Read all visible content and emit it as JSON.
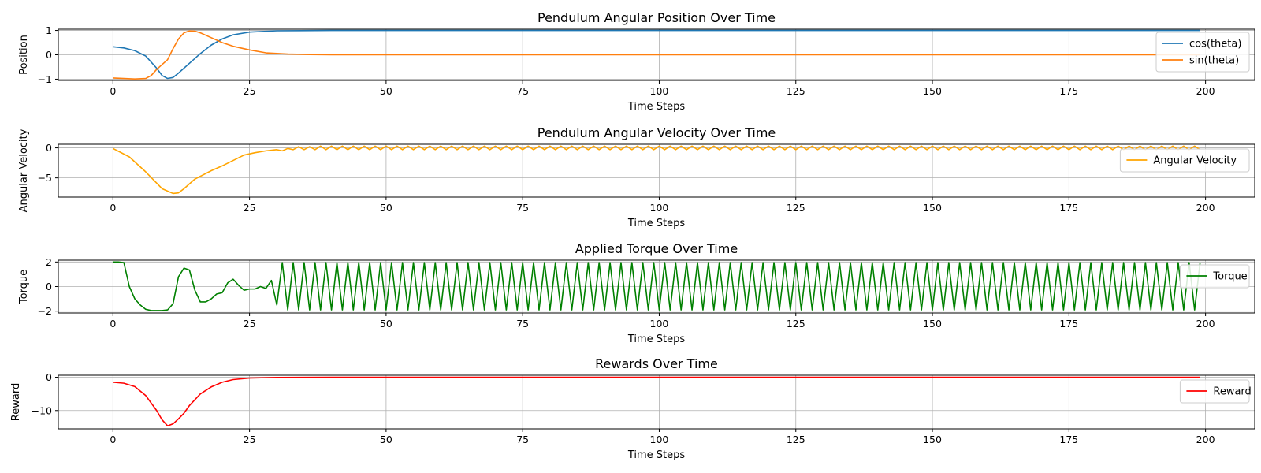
{
  "chart_data": [
    {
      "type": "line",
      "title": "Pendulum Angular Position Over Time",
      "xlabel": "Time Steps",
      "ylabel": "Position",
      "xlim": [
        -10,
        209
      ],
      "ylim": [
        -1.05,
        1.05
      ],
      "xticks": [
        0,
        25,
        50,
        75,
        100,
        125,
        150,
        175,
        200
      ],
      "yticks": [
        -1,
        0,
        1
      ],
      "grid": true,
      "legend": "right",
      "series": [
        {
          "name": "cos(theta)",
          "color": "#1f77b4",
          "x": [
            0,
            2,
            4,
            6,
            8,
            9,
            10,
            11,
            12,
            13,
            14,
            16,
            18,
            20,
            22,
            25,
            30,
            40,
            60,
            100,
            150,
            199
          ],
          "values": [
            0.33,
            0.28,
            0.17,
            -0.05,
            -0.55,
            -0.85,
            -0.97,
            -0.93,
            -0.75,
            -0.55,
            -0.35,
            0.05,
            0.4,
            0.65,
            0.82,
            0.93,
            0.985,
            1.0,
            1.0,
            1.0,
            1.0,
            1.0
          ]
        },
        {
          "name": "sin(theta)",
          "color": "#ff7f0e",
          "x": [
            0,
            2,
            4,
            6,
            7,
            8,
            10,
            11,
            12,
            13,
            14,
            15,
            16,
            18,
            20,
            22,
            25,
            28,
            32,
            36,
            40,
            60,
            100,
            150,
            199
          ],
          "values": [
            -0.95,
            -0.97,
            -0.99,
            -0.97,
            -0.85,
            -0.6,
            -0.2,
            0.25,
            0.65,
            0.9,
            0.98,
            0.97,
            0.9,
            0.7,
            0.5,
            0.35,
            0.2,
            0.08,
            0.03,
            0.01,
            0.0,
            0.0,
            0.0,
            0.0,
            0.0
          ]
        }
      ]
    },
    {
      "type": "line",
      "title": "Pendulum Angular Velocity Over Time",
      "xlabel": "Time Steps",
      "ylabel": "Angular Velocity",
      "xlim": [
        -10,
        209
      ],
      "ylim": [
        -8.2,
        0.6
      ],
      "xticks": [
        0,
        25,
        50,
        75,
        100,
        125,
        150,
        175,
        200
      ],
      "yticks": [
        -5,
        0
      ],
      "grid": true,
      "legend": "right",
      "series": [
        {
          "name": "Angular Velocity",
          "color": "#ffa500",
          "x": [
            0,
            3,
            6,
            9,
            11,
            12,
            13,
            15,
            18,
            20,
            22,
            24,
            26,
            28,
            30,
            31,
            32,
            33,
            34,
            35,
            36,
            37,
            38,
            39,
            40
          ],
          "values": [
            -0.1,
            -1.5,
            -4.0,
            -6.8,
            -7.6,
            -7.5,
            -6.8,
            -5.2,
            -3.8,
            -3.0,
            -2.1,
            -1.2,
            -0.8,
            -0.5,
            -0.3,
            -0.5,
            -0.1,
            -0.3,
            0.2,
            -0.3,
            0.2,
            -0.3,
            0.3,
            -0.3,
            0.3
          ]
        }
      ]
    },
    {
      "type": "line",
      "title": "Applied Torque Over Time",
      "xlabel": "Time Steps",
      "ylabel": "Torque",
      "xlim": [
        -10,
        209
      ],
      "ylim": [
        -2.15,
        2.15
      ],
      "xticks": [
        0,
        25,
        50,
        75,
        100,
        125,
        150,
        175,
        200
      ],
      "yticks": [
        -2,
        0,
        2
      ],
      "grid": true,
      "legend": "right",
      "series": [
        {
          "name": "Torque",
          "color": "#008000",
          "x": [
            0,
            1,
            2,
            3,
            4,
            5,
            6,
            7,
            8,
            9,
            10,
            11,
            12,
            13,
            14,
            15,
            16,
            17,
            18,
            19,
            20,
            21,
            22,
            23,
            24,
            25,
            26,
            27,
            28,
            29,
            30
          ],
          "values": [
            2.0,
            2.0,
            1.95,
            0.0,
            -1.0,
            -1.5,
            -1.85,
            -1.95,
            -1.95,
            -1.95,
            -1.9,
            -1.4,
            0.8,
            1.5,
            1.35,
            -0.3,
            -1.25,
            -1.25,
            -1.0,
            -0.6,
            -0.5,
            0.3,
            0.6,
            0.1,
            -0.3,
            -0.2,
            -0.2,
            0.0,
            -0.15,
            0.5,
            -1.5
          ]
        }
      ]
    },
    {
      "type": "line",
      "title": "Rewards Over Time",
      "xlabel": "Time Steps",
      "ylabel": "Reward",
      "xlim": [
        -10,
        209
      ],
      "ylim": [
        -15.5,
        0.6
      ],
      "xticks": [
        0,
        25,
        50,
        75,
        100,
        125,
        150,
        175,
        200
      ],
      "yticks": [
        -10,
        0
      ],
      "grid": true,
      "legend": "right",
      "series": [
        {
          "name": "Reward",
          "color": "#ff0000",
          "x": [
            0,
            2,
            4,
            6,
            8,
            9,
            10,
            11,
            12,
            13,
            14,
            16,
            18,
            20,
            22,
            25,
            30,
            40,
            60,
            100,
            150,
            199
          ],
          "values": [
            -1.5,
            -1.8,
            -2.8,
            -5.5,
            -10.0,
            -12.8,
            -14.6,
            -14.0,
            -12.5,
            -10.8,
            -8.5,
            -5.0,
            -2.9,
            -1.5,
            -0.7,
            -0.25,
            -0.05,
            0.0,
            0.0,
            0.0,
            0.0,
            0.0
          ]
        }
      ]
    }
  ]
}
